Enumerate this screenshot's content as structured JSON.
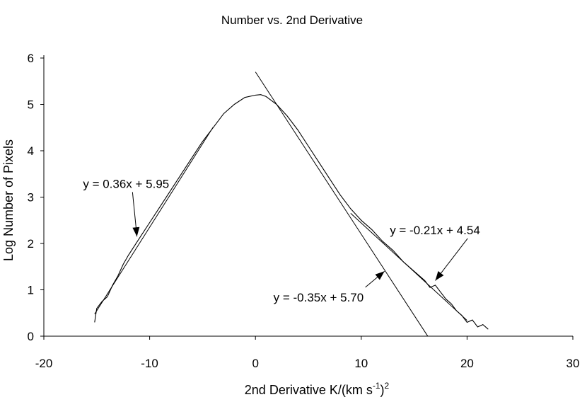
{
  "chart_data": {
    "type": "line",
    "title": "Number vs. 2nd Derivative",
    "xlabel": "2nd Derivative K/(km s",
    "xlabel_sup1": "-1",
    "xlabel_mid": ")",
    "xlabel_sup2": "2",
    "ylabel": "Log Number of Pixels",
    "xlim": [
      -20,
      30
    ],
    "ylim": [
      0,
      6
    ],
    "xticks": [
      -20,
      -10,
      0,
      10,
      20,
      30
    ],
    "yticks": [
      0,
      1,
      2,
      3,
      4,
      5,
      6
    ],
    "grid": false,
    "legend": "none",
    "series": [
      {
        "type": "data",
        "color": "#000000",
        "x": [
          -15.2,
          -15.0,
          -14.5,
          -14.0,
          -13.5,
          -13.0,
          -12.5,
          -12.0,
          -11.0,
          -10.0,
          -9.0,
          -8.0,
          -7.0,
          -6.0,
          -5.0,
          -4.0,
          -3.0,
          -2.0,
          -1.0,
          0.0,
          0.5,
          1.0,
          2.0,
          3.0,
          4.0,
          5.0,
          6.0,
          7.0,
          8.0,
          9.0,
          10.0,
          11.0,
          12.0,
          13.0,
          14.0,
          15.0,
          16.0,
          16.5,
          17.0,
          17.5,
          18.0,
          18.5,
          19.0,
          19.5,
          20.0,
          20.5,
          21.0,
          21.5,
          22.0
        ],
        "y": [
          0.3,
          0.6,
          0.75,
          0.85,
          1.1,
          1.3,
          1.55,
          1.75,
          2.1,
          2.45,
          2.8,
          3.15,
          3.5,
          3.85,
          4.2,
          4.5,
          4.8,
          5.0,
          5.15,
          5.2,
          5.21,
          5.17,
          5.0,
          4.75,
          4.45,
          4.1,
          3.75,
          3.4,
          3.05,
          2.75,
          2.5,
          2.3,
          2.05,
          1.85,
          1.6,
          1.4,
          1.2,
          1.05,
          1.1,
          0.95,
          0.8,
          0.7,
          0.55,
          0.45,
          0.3,
          0.35,
          0.2,
          0.25,
          0.15
        ]
      },
      {
        "type": "fit",
        "equation": "y = 0.36x + 5.95",
        "slope": 0.36,
        "intercept": 5.95,
        "x_range": [
          -15.2,
          -4
        ]
      },
      {
        "type": "fit",
        "equation": "y = -0.35x + 5.70",
        "slope": -0.35,
        "intercept": 5.7,
        "x_range": [
          0,
          16.3
        ]
      },
      {
        "type": "fit",
        "equation": "y = -0.21x + 4.54",
        "slope": -0.21,
        "intercept": 4.54,
        "x_range": [
          9,
          20
        ]
      }
    ],
    "annotations": [
      {
        "text": "y = 0.36x + 5.95",
        "x": -16.3,
        "y": 3.2,
        "arrow_to": [
          -11.2,
          2.15
        ]
      },
      {
        "text": "y = -0.21x + 4.54",
        "x": 12.7,
        "y": 2.2,
        "arrow_to": [
          17.0,
          1.2
        ]
      },
      {
        "text": "y = -0.35x + 5.70",
        "x": 1.7,
        "y": 0.75,
        "arrow_to": [
          12.2,
          1.4
        ]
      }
    ]
  }
}
